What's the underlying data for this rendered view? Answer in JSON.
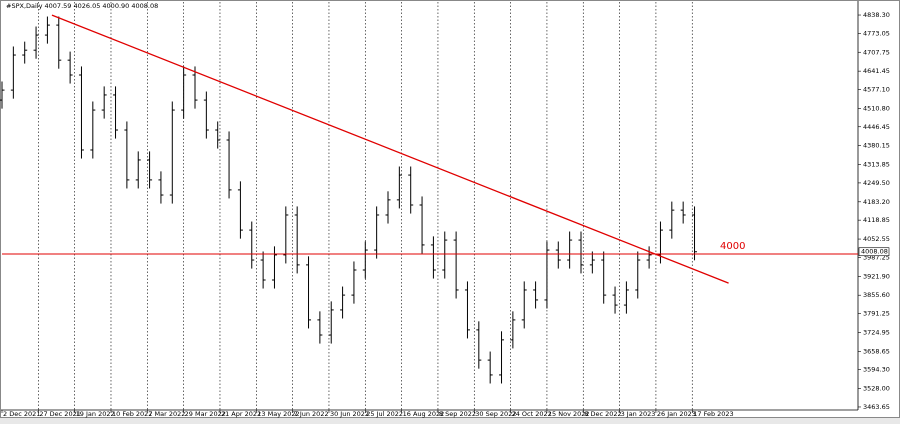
{
  "chart_data": {
    "type": "ohlc",
    "header": "#SPX,Daily  4007.59 4026.05 4000.90 4008.08",
    "x": [
      0,
      5,
      10,
      15,
      20,
      25,
      30,
      35,
      40,
      45,
      50,
      55,
      60,
      65,
      70,
      75,
      80,
      85,
      90,
      95,
      100,
      105,
      110,
      115,
      120,
      125,
      130,
      135,
      140,
      145,
      150,
      155,
      160,
      165,
      170,
      175,
      180,
      185,
      190,
      195,
      200,
      205,
      210,
      215,
      220,
      225,
      230,
      235,
      240,
      245,
      250,
      255,
      260,
      265,
      270,
      275,
      280,
      285,
      290,
      295,
      300,
      305
    ],
    "open": [
      4540,
      4575,
      4698,
      4715,
      4768,
      4803,
      4680,
      4628,
      4365,
      4505,
      4558,
      4435,
      4260,
      4330,
      4260,
      4207,
      4505,
      4628,
      4540,
      4435,
      4400,
      4225,
      4084,
      3979,
      3909,
      3997,
      4137,
      3962,
      3769,
      3716,
      3804,
      3856,
      3944,
      4014,
      4137,
      4190,
      4277,
      4172,
      4032,
      3944,
      4049,
      3874,
      3734,
      3628,
      3576,
      3699,
      3769,
      3874,
      3839,
      4014,
      3979,
      4049,
      3962,
      3979,
      3856,
      3821,
      3874,
      3979,
      3997,
      4084,
      4154,
      4137
    ],
    "high": [
      4605,
      4728,
      4745,
      4798,
      4833,
      4833,
      4710,
      4658,
      4535,
      4588,
      4588,
      4465,
      4360,
      4360,
      4290,
      4535,
      4658,
      4658,
      4570,
      4465,
      4430,
      4255,
      4114,
      4009,
      4027,
      4167,
      4167,
      3992,
      3799,
      3834,
      3886,
      3974,
      4044,
      4167,
      4220,
      4307,
      4307,
      4202,
      4062,
      4079,
      4079,
      3904,
      3764,
      3658,
      3729,
      3799,
      3904,
      3904,
      4044,
      4044,
      4079,
      4079,
      4009,
      4009,
      3886,
      3904,
      4009,
      4027,
      4114,
      4184,
      4184,
      4167
    ],
    "low": [
      4510,
      4545,
      4668,
      4685,
      4738,
      4650,
      4598,
      4335,
      4335,
      4475,
      4405,
      4230,
      4230,
      4230,
      4177,
      4177,
      4475,
      4510,
      4405,
      4370,
      4195,
      4054,
      3949,
      3879,
      3879,
      3967,
      3932,
      3739,
      3686,
      3686,
      3774,
      3826,
      3914,
      3984,
      4107,
      4160,
      4142,
      4002,
      3914,
      3914,
      3844,
      3704,
      3598,
      3546,
      3546,
      3669,
      3739,
      3809,
      3809,
      3949,
      3949,
      3932,
      3932,
      3826,
      3791,
      3791,
      3844,
      3949,
      3967,
      4054,
      4107,
      3978
    ],
    "close": [
      4575,
      4698,
      4715,
      4768,
      4803,
      4680,
      4628,
      4365,
      4505,
      4558,
      4435,
      4260,
      4330,
      4260,
      4207,
      4505,
      4628,
      4540,
      4435,
      4400,
      4225,
      4084,
      3979,
      3909,
      3997,
      4137,
      3962,
      3769,
      3716,
      3804,
      3856,
      3944,
      4014,
      4137,
      4190,
      4277,
      4172,
      4032,
      3944,
      4049,
      3874,
      3734,
      3628,
      3576,
      3699,
      3769,
      3874,
      3839,
      4014,
      3979,
      4049,
      3962,
      3979,
      3856,
      3821,
      3874,
      3979,
      3997,
      4084,
      4154,
      4137,
      4008
    ],
    "bar_color": "#000000",
    "xlim": [
      0,
      377
    ],
    "ylim": [
      3453,
      4884
    ],
    "xticks": [
      {
        "value": 0,
        "label": "2 Dec 2021"
      },
      {
        "value": 16,
        "label": "27 Dec 2021"
      },
      {
        "value": 32,
        "label": "19 Jan 2022"
      },
      {
        "value": 48,
        "label": "10 Feb 2022"
      },
      {
        "value": 64,
        "label": "7 Mar 2022"
      },
      {
        "value": 80,
        "label": "29 Mar 2022"
      },
      {
        "value": 96,
        "label": "21 Apr 2022"
      },
      {
        "value": 112,
        "label": "13 May 2022"
      },
      {
        "value": 128,
        "label": "7 Jun 2022"
      },
      {
        "value": 144,
        "label": "30 Jun 2022"
      },
      {
        "value": 160,
        "label": "25 Jul 2022"
      },
      {
        "value": 176,
        "label": "16 Aug 2022"
      },
      {
        "value": 192,
        "label": "8 Sep 2022"
      },
      {
        "value": 208,
        "label": "30 Sep 2022"
      },
      {
        "value": 224,
        "label": "24 Oct 2022"
      },
      {
        "value": 240,
        "label": "15 Nov 2022"
      },
      {
        "value": 256,
        "label": "8 Dec 2022"
      },
      {
        "value": 272,
        "label": "3 Jan 2023"
      },
      {
        "value": 288,
        "label": "26 Jan 2023"
      },
      {
        "value": 304,
        "label": "17 Feb 2023"
      }
    ],
    "yticks": [
      {
        "value": 4838.3,
        "label": "4838.30"
      },
      {
        "value": 4773.05,
        "label": "4773.05"
      },
      {
        "value": 4707.75,
        "label": "4707.75"
      },
      {
        "value": 4641.45,
        "label": "4641.45"
      },
      {
        "value": 4577.1,
        "label": "4577.10"
      },
      {
        "value": 4510.8,
        "label": "4510.80"
      },
      {
        "value": 4446.45,
        "label": "4446.45"
      },
      {
        "value": 4380.15,
        "label": "4380.15"
      },
      {
        "value": 4313.85,
        "label": "4313.85"
      },
      {
        "value": 4249.5,
        "label": "4249.50"
      },
      {
        "value": 4183.2,
        "label": "4183.20"
      },
      {
        "value": 4118.85,
        "label": "4118.85"
      },
      {
        "value": 4052.55,
        "label": "4052.55"
      },
      {
        "value": 3987.25,
        "label": "3987.25"
      },
      {
        "value": 3921.9,
        "label": "3921.90"
      },
      {
        "value": 3855.6,
        "label": "3855.60"
      },
      {
        "value": 3791.25,
        "label": "3791.25"
      },
      {
        "value": 3724.95,
        "label": "3724.95"
      },
      {
        "value": 3658.65,
        "label": "3658.65"
      },
      {
        "value": 3594.3,
        "label": "3594.30"
      },
      {
        "value": 3528,
        "label": "3528.00"
      },
      {
        "value": 3463.65,
        "label": "3463.65"
      }
    ],
    "grid": true,
    "level": {
      "value": 4000,
      "label": "4000",
      "color": "#e00000"
    },
    "trendline": {
      "x": [
        22,
        320
      ],
      "y": [
        4838,
        3898
      ],
      "color": "#e00000"
    },
    "last_price": {
      "value": 4008.08,
      "label": "4008.08"
    }
  }
}
